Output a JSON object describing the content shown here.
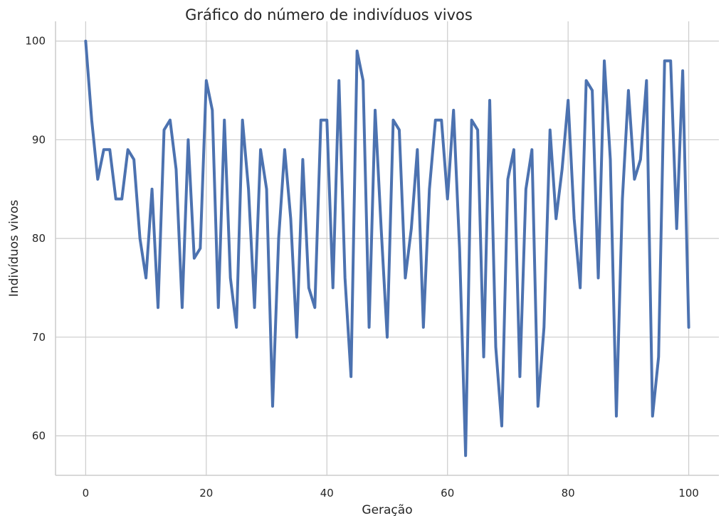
{
  "chart_data": {
    "type": "line",
    "title": "Gráfico do número de indivíduos vivos",
    "xlabel": "Geração",
    "ylabel": "Indivíduos vivos",
    "xlim": [
      -5,
      105
    ],
    "ylim": [
      56,
      102
    ],
    "xticks": [
      0,
      20,
      40,
      60,
      80,
      100
    ],
    "yticks": [
      60,
      70,
      80,
      90,
      100
    ],
    "grid": true,
    "series": [
      {
        "color": "#4c72b0",
        "x": [
          0,
          1,
          2,
          3,
          4,
          5,
          6,
          7,
          8,
          9,
          10,
          11,
          12,
          13,
          14,
          15,
          16,
          17,
          18,
          19,
          20,
          21,
          22,
          23,
          24,
          25,
          26,
          27,
          28,
          29,
          30,
          31,
          32,
          33,
          34,
          35,
          36,
          37,
          38,
          39,
          40,
          41,
          42,
          43,
          44,
          45,
          46,
          47,
          48,
          49,
          50,
          51,
          52,
          53,
          54,
          55,
          56,
          57,
          58,
          59,
          60,
          61,
          62,
          63,
          64,
          65,
          66,
          67,
          68,
          69,
          70,
          71,
          72,
          73,
          74,
          75,
          76,
          77,
          78,
          79,
          80,
          81,
          82,
          83,
          84,
          85,
          86,
          87,
          88,
          89,
          90,
          91,
          92,
          93,
          94,
          95,
          96,
          97,
          98,
          99,
          100
        ],
        "values": [
          100,
          92,
          86,
          89,
          89,
          84,
          84,
          89,
          88,
          80,
          76,
          85,
          73,
          91,
          92,
          87,
          73,
          90,
          78,
          79,
          96,
          93,
          73,
          92,
          76,
          71,
          92,
          85,
          73,
          89,
          85,
          63,
          80,
          89,
          82,
          70,
          88,
          75,
          73,
          92,
          92,
          75,
          96,
          76,
          66,
          99,
          96,
          71,
          93,
          81,
          70,
          92,
          91,
          76,
          81,
          89,
          71,
          85,
          92,
          92,
          84,
          93,
          79,
          58,
          92,
          91,
          68,
          94,
          69,
          61,
          86,
          89,
          66,
          85,
          89,
          63,
          71,
          91,
          82,
          87,
          94,
          82,
          75,
          96,
          95,
          76,
          98,
          88,
          62,
          84,
          95,
          86,
          88,
          96,
          62,
          68,
          98,
          98,
          81,
          97,
          71
        ]
      }
    ]
  }
}
